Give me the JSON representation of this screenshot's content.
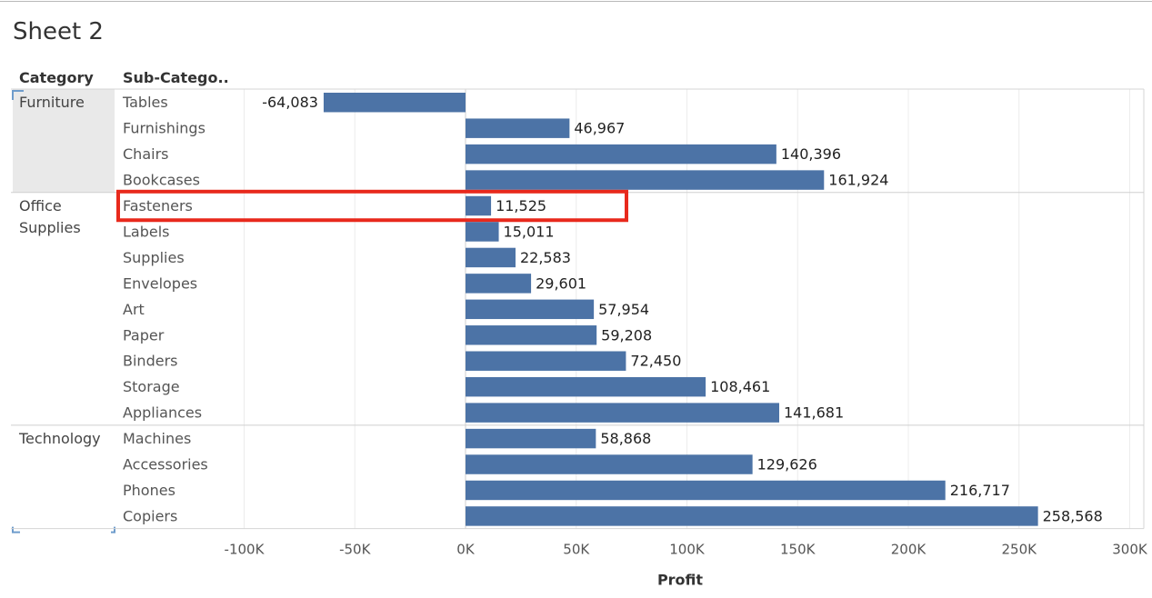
{
  "sheet": {
    "title": "Sheet 2"
  },
  "headers": {
    "category": "Category",
    "sub_category": "Sub-Catego.."
  },
  "colors": {
    "bar": "#4c73a6",
    "highlight_box": "#e8291c",
    "grid": "#ececec",
    "selection": "#e9e9e9"
  },
  "highlight": {
    "target": "Fasteners"
  },
  "chart_data": {
    "type": "bar",
    "orientation": "horizontal",
    "xlabel": "Profit",
    "xlim": [
      -110000,
      300000
    ],
    "x_ticks": [
      -100000,
      -50000,
      0,
      50000,
      100000,
      150000,
      200000,
      250000,
      300000
    ],
    "x_tick_labels": [
      "-100K",
      "-50K",
      "0K",
      "50K",
      "100K",
      "150K",
      "200K",
      "250K",
      "300K"
    ],
    "groups": [
      {
        "category": "Furniture",
        "items": [
          {
            "sub_category": "Tables",
            "value": -64083,
            "label": "-64,083"
          },
          {
            "sub_category": "Furnishings",
            "value": 46967,
            "label": "46,967"
          },
          {
            "sub_category": "Chairs",
            "value": 140396,
            "label": "140,396"
          },
          {
            "sub_category": "Bookcases",
            "value": 161924,
            "label": "161,924"
          }
        ]
      },
      {
        "category": "Office Supplies",
        "items": [
          {
            "sub_category": "Fasteners",
            "value": 11525,
            "label": "11,525"
          },
          {
            "sub_category": "Labels",
            "value": 15011,
            "label": "15,011"
          },
          {
            "sub_category": "Supplies",
            "value": 22583,
            "label": "22,583"
          },
          {
            "sub_category": "Envelopes",
            "value": 29601,
            "label": "29,601"
          },
          {
            "sub_category": "Art",
            "value": 57954,
            "label": "57,954"
          },
          {
            "sub_category": "Paper",
            "value": 59208,
            "label": "59,208"
          },
          {
            "sub_category": "Binders",
            "value": 72450,
            "label": "72,450"
          },
          {
            "sub_category": "Storage",
            "value": 108461,
            "label": "108,461"
          },
          {
            "sub_category": "Appliances",
            "value": 141681,
            "label": "141,681"
          }
        ]
      },
      {
        "category": "Technology",
        "items": [
          {
            "sub_category": "Machines",
            "value": 58868,
            "label": "58,868"
          },
          {
            "sub_category": "Accessories",
            "value": 129626,
            "label": "129,626"
          },
          {
            "sub_category": "Phones",
            "value": 216717,
            "label": "216,717"
          },
          {
            "sub_category": "Copiers",
            "value": 258568,
            "label": "258,568"
          }
        ]
      }
    ]
  }
}
